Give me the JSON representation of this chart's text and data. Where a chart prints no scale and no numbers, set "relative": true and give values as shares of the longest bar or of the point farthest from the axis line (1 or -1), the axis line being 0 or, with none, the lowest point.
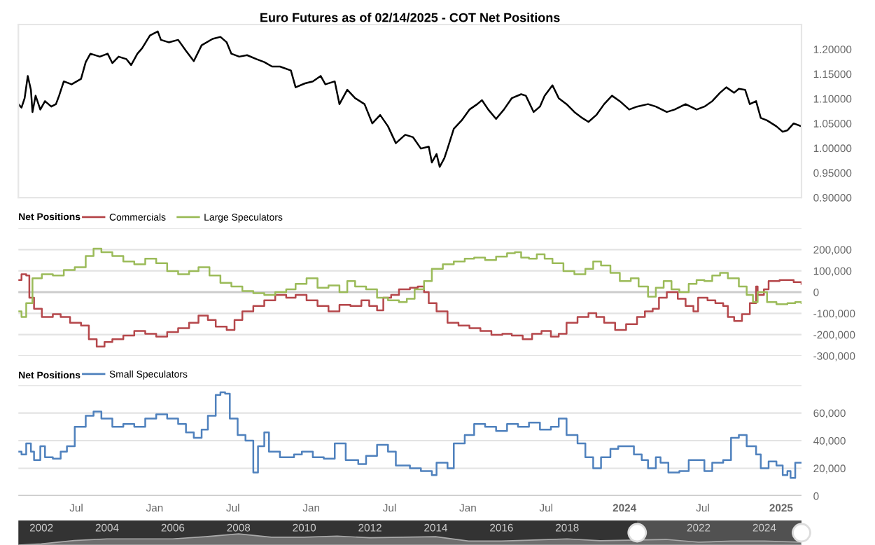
{
  "chart_data": [
    {
      "type": "line",
      "title": "Euro Futures as of 02/14/2025 - COT Net Positions",
      "xlim": [
        2020.13,
        2025.13
      ],
      "ylim": [
        0.9,
        1.25
      ],
      "yticks": [
        {
          "value": 0.9,
          "label": "0.90000"
        },
        {
          "value": 0.95,
          "label": "0.95000"
        },
        {
          "value": 1.0,
          "label": "1.00000"
        },
        {
          "value": 1.05,
          "label": "1.05000"
        },
        {
          "value": 1.1,
          "label": "1.10000"
        },
        {
          "value": 1.15,
          "label": "1.15000"
        },
        {
          "value": 1.2,
          "label": "1.20000"
        }
      ],
      "tick_labels": "y",
      "grid": false,
      "legend": false,
      "series": [
        {
          "color": "#000000",
          "x": [
            2020.13,
            2020.15,
            2020.17,
            2020.19,
            2020.21,
            2020.22,
            2020.24,
            2020.27,
            2020.3,
            2020.34,
            2020.37,
            2020.39,
            2020.42,
            2020.47,
            2020.53,
            2020.56,
            2020.59,
            2020.65,
            2020.7,
            2020.73,
            2020.77,
            2020.82,
            2020.85,
            2020.89,
            2020.92,
            2020.97,
            2021.02,
            2021.04,
            2021.09,
            2021.15,
            2021.2,
            2021.25,
            2021.3,
            2021.37,
            2021.42,
            2021.46,
            2021.49,
            2021.54,
            2021.59,
            2021.65,
            2021.7,
            2021.75,
            2021.8,
            2021.87,
            2021.9,
            2021.96,
            2022.01,
            2022.06,
            2022.09,
            2022.15,
            2022.18,
            2022.23,
            2022.28,
            2022.34,
            2022.39,
            2022.44,
            2022.49,
            2022.54,
            2022.6,
            2022.65,
            2022.7,
            2022.75,
            2022.77,
            2022.8,
            2022.82,
            2022.85,
            2022.87,
            2022.91,
            2022.96,
            2023.01,
            2023.06,
            2023.09,
            2023.13,
            2023.18,
            2023.23,
            2023.28,
            2023.34,
            2023.37,
            2023.42,
            2023.46,
            2023.49,
            2023.54,
            2023.58,
            2023.63,
            2023.68,
            2023.73,
            2023.77,
            2023.82,
            2023.87,
            2023.92,
            2023.97,
            2024.03,
            2024.08,
            2024.15,
            2024.2,
            2024.27,
            2024.32,
            2024.39,
            2024.46,
            2024.51,
            2024.56,
            2024.61,
            2024.65,
            2024.7,
            2024.73,
            2024.77,
            2024.8,
            2024.84,
            2024.87,
            2024.91,
            2024.94,
            2024.97,
            2025.01,
            2025.04,
            2025.08,
            2025.13
          ],
          "values": [
            1.089,
            1.082,
            1.101,
            1.146,
            1.118,
            1.073,
            1.106,
            1.078,
            1.095,
            1.084,
            1.089,
            1.106,
            1.135,
            1.129,
            1.14,
            1.174,
            1.191,
            1.185,
            1.191,
            1.172,
            1.185,
            1.18,
            1.168,
            1.191,
            1.202,
            1.228,
            1.236,
            1.219,
            1.214,
            1.219,
            1.197,
            1.176,
            1.208,
            1.221,
            1.225,
            1.214,
            1.191,
            1.185,
            1.188,
            1.18,
            1.174,
            1.165,
            1.165,
            1.157,
            1.123,
            1.131,
            1.135,
            1.146,
            1.129,
            1.135,
            1.089,
            1.118,
            1.101,
            1.089,
            1.05,
            1.067,
            1.044,
            1.01,
            1.027,
            1.022,
            0.999,
            1.003,
            0.971,
            0.988,
            0.962,
            0.98,
            0.999,
            1.039,
            1.056,
            1.078,
            1.089,
            1.097,
            1.078,
            1.059,
            1.078,
            1.101,
            1.109,
            1.106,
            1.073,
            1.084,
            1.106,
            1.127,
            1.101,
            1.089,
            1.073,
            1.061,
            1.053,
            1.067,
            1.089,
            1.106,
            1.095,
            1.078,
            1.084,
            1.089,
            1.084,
            1.073,
            1.078,
            1.089,
            1.078,
            1.084,
            1.095,
            1.112,
            1.123,
            1.112,
            1.12,
            1.118,
            1.089,
            1.095,
            1.061,
            1.056,
            1.05,
            1.044,
            1.033,
            1.036,
            1.05,
            1.044
          ]
        }
      ]
    },
    {
      "type": "step",
      "legend_title": "Net Positions",
      "legend": "top left",
      "grid": "y",
      "tick_labels": "y",
      "xlim": [
        2020.13,
        2025.13
      ],
      "ylim": [
        -300000,
        300000
      ],
      "yticks": [
        {
          "value": -300000,
          "label": "-300,000"
        },
        {
          "value": -200000,
          "label": "-200,000"
        },
        {
          "value": -100000,
          "label": "-100,000"
        },
        0,
        {
          "value": 100000,
          "label": "100,000"
        },
        {
          "value": 200000,
          "label": "200,000"
        },
        {
          "value": 300000,
          "label": null
        }
      ],
      "series": [
        {
          "name": "Commercials",
          "color": "#b5474b",
          "x": [
            2020.13,
            2020.15,
            2020.18,
            2020.2,
            2020.23,
            2020.28,
            2020.35,
            2020.4,
            2020.46,
            2020.53,
            2020.58,
            2020.63,
            2020.68,
            2020.73,
            2020.8,
            2020.87,
            2020.94,
            2021.01,
            2021.08,
            2021.15,
            2021.22,
            2021.28,
            2021.34,
            2021.39,
            2021.46,
            2021.51,
            2021.56,
            2021.63,
            2021.7,
            2021.77,
            2021.84,
            2021.9,
            2021.97,
            2022.04,
            2022.11,
            2022.18,
            2022.25,
            2022.32,
            2022.37,
            2022.42,
            2022.46,
            2022.51,
            2022.56,
            2022.63,
            2022.68,
            2022.72,
            2022.75,
            2022.8,
            2022.87,
            2022.94,
            2023.01,
            2023.08,
            2023.15,
            2023.22,
            2023.28,
            2023.35,
            2023.41,
            2023.47,
            2023.53,
            2023.58,
            2023.63,
            2023.7,
            2023.77,
            2023.82,
            2023.87,
            2023.94,
            2024.01,
            2024.08,
            2024.13,
            2024.18,
            2024.22,
            2024.27,
            2024.34,
            2024.39,
            2024.44,
            2024.47,
            2024.53,
            2024.58,
            2024.63,
            2024.66,
            2024.7,
            2024.75,
            2024.8,
            2024.84,
            2024.85,
            2024.89,
            2024.92,
            2024.99,
            2025.08,
            2025.13
          ],
          "values": [
            57000,
            84000,
            78000,
            -26000,
            -78000,
            -117000,
            -104000,
            -117000,
            -144000,
            -157000,
            -222000,
            -256000,
            -235000,
            -222000,
            -204000,
            -183000,
            -196000,
            -209000,
            -188000,
            -170000,
            -144000,
            -110000,
            -131000,
            -162000,
            -178000,
            -131000,
            -91000,
            -65000,
            -39000,
            -13000,
            -26000,
            -13000,
            -39000,
            -65000,
            -91000,
            -60000,
            -65000,
            -39000,
            -65000,
            -86000,
            -26000,
            -13000,
            13000,
            21000,
            26000,
            0,
            -52000,
            -91000,
            -144000,
            -157000,
            -170000,
            -183000,
            -201000,
            -196000,
            -204000,
            -222000,
            -196000,
            -183000,
            -209000,
            -196000,
            -144000,
            -117000,
            -99000,
            -117000,
            -144000,
            -178000,
            -151000,
            -117000,
            -91000,
            -78000,
            -26000,
            0,
            -31000,
            -65000,
            -91000,
            -26000,
            -39000,
            -52000,
            -65000,
            -117000,
            -136000,
            -104000,
            -52000,
            26000,
            -13000,
            13000,
            52000,
            57000,
            47000,
            39000
          ]
        },
        {
          "name": "Large Speculators",
          "color": "#9bbb59",
          "x": [
            2020.13,
            2020.15,
            2020.18,
            2020.22,
            2020.28,
            2020.35,
            2020.42,
            2020.49,
            2020.56,
            2020.61,
            2020.66,
            2020.73,
            2020.8,
            2020.87,
            2020.94,
            2021.01,
            2021.08,
            2021.15,
            2021.22,
            2021.28,
            2021.35,
            2021.42,
            2021.49,
            2021.56,
            2021.63,
            2021.7,
            2021.77,
            2021.84,
            2021.9,
            2021.97,
            2022.04,
            2022.11,
            2022.18,
            2022.23,
            2022.28,
            2022.35,
            2022.42,
            2022.49,
            2022.56,
            2022.61,
            2022.66,
            2022.72,
            2022.77,
            2022.84,
            2022.91,
            2022.98,
            2023.04,
            2023.11,
            2023.18,
            2023.25,
            2023.3,
            2023.34,
            2023.39,
            2023.44,
            2023.49,
            2023.54,
            2023.61,
            2023.68,
            2023.75,
            2023.8,
            2023.85,
            2023.91,
            2023.97,
            2024.04,
            2024.09,
            2024.15,
            2024.2,
            2024.25,
            2024.3,
            2024.35,
            2024.41,
            2024.46,
            2024.51,
            2024.56,
            2024.61,
            2024.66,
            2024.73,
            2024.78,
            2024.82,
            2024.85,
            2024.91,
            2024.97,
            2025.04,
            2025.09,
            2025.13
          ],
          "values": [
            -91000,
            -117000,
            -52000,
            65000,
            84000,
            78000,
            104000,
            117000,
            170000,
            204000,
            188000,
            170000,
            144000,
            131000,
            157000,
            136000,
            99000,
            84000,
            99000,
            117000,
            78000,
            44000,
            26000,
            5000,
            -5000,
            -13000,
            0,
            13000,
            39000,
            65000,
            21000,
            31000,
            0,
            52000,
            26000,
            13000,
            -26000,
            -39000,
            -47000,
            -31000,
            13000,
            52000,
            110000,
            131000,
            144000,
            157000,
            162000,
            151000,
            167000,
            183000,
            188000,
            162000,
            157000,
            178000,
            157000,
            136000,
            99000,
            84000,
            110000,
            144000,
            125000,
            91000,
            52000,
            65000,
            26000,
            -21000,
            21000,
            52000,
            13000,
            0,
            39000,
            57000,
            52000,
            78000,
            91000,
            65000,
            26000,
            -13000,
            -47000,
            0,
            -47000,
            -57000,
            -52000,
            -47000,
            -52000
          ]
        }
      ]
    },
    {
      "type": "step",
      "legend_title": "Net Positions",
      "legend": "top left",
      "grid": "y",
      "xlim": [
        2020.13,
        2025.13
      ],
      "ylim": [
        0,
        80000
      ],
      "xticks": [
        {
          "value": 2020.5,
          "label": "Jul"
        },
        {
          "value": 2021,
          "label": "Jan"
        },
        {
          "value": 2021.5,
          "label": "Jul"
        },
        {
          "value": 2022,
          "label": "Jan"
        },
        {
          "value": 2022.5,
          "label": "Jul"
        },
        {
          "value": 2023,
          "label": "Jan"
        },
        {
          "value": 2023.5,
          "label": "Jul"
        },
        2024,
        {
          "value": 2024.5,
          "label": "Jul"
        },
        2025
      ],
      "yticks": [
        0,
        {
          "value": 20000,
          "label": "20,000"
        },
        {
          "value": 40000,
          "label": "40,000"
        },
        {
          "value": 60000,
          "label": "60,000"
        },
        {
          "value": 80000,
          "label": null
        }
      ],
      "series": [
        {
          "name": "Small Speculators",
          "color": "#4f81bd",
          "x": [
            2020.13,
            2020.15,
            2020.18,
            2020.21,
            2020.23,
            2020.27,
            2020.3,
            2020.35,
            2020.4,
            2020.44,
            2020.49,
            2020.56,
            2020.61,
            2020.66,
            2020.73,
            2020.8,
            2020.87,
            2020.94,
            2021.01,
            2021.08,
            2021.15,
            2021.2,
            2021.25,
            2021.3,
            2021.34,
            2021.39,
            2021.42,
            2021.45,
            2021.48,
            2021.53,
            2021.58,
            2021.63,
            2021.66,
            2021.7,
            2021.73,
            2021.8,
            2021.89,
            2021.94,
            2022.01,
            2022.08,
            2022.15,
            2022.22,
            2022.3,
            2022.35,
            2022.42,
            2022.49,
            2022.54,
            2022.63,
            2022.7,
            2022.77,
            2022.8,
            2022.87,
            2022.91,
            2022.98,
            2023.04,
            2023.11,
            2023.18,
            2023.25,
            2023.32,
            2023.39,
            2023.46,
            2023.53,
            2023.58,
            2023.63,
            2023.7,
            2023.75,
            2023.8,
            2023.85,
            2023.91,
            2023.96,
            2024.01,
            2024.06,
            2024.11,
            2024.15,
            2024.2,
            2024.23,
            2024.28,
            2024.35,
            2024.41,
            2024.46,
            2024.51,
            2024.56,
            2024.63,
            2024.68,
            2024.73,
            2024.78,
            2024.84,
            2024.87,
            2024.92,
            2024.97,
            2025.01,
            2025.04,
            2025.06,
            2025.09,
            2025.13
          ],
          "values": [
            32000,
            30000,
            38000,
            32000,
            26000,
            36000,
            28000,
            27000,
            32000,
            36000,
            50000,
            58000,
            61000,
            56000,
            50000,
            52000,
            50000,
            56000,
            59000,
            56000,
            52000,
            46000,
            42000,
            48000,
            58000,
            73000,
            75000,
            74000,
            56000,
            44000,
            40000,
            17000,
            36000,
            46000,
            32000,
            28000,
            30000,
            32000,
            28000,
            27000,
            38000,
            26000,
            23000,
            29000,
            37000,
            32000,
            22000,
            20000,
            18000,
            15000,
            24000,
            20000,
            38000,
            44000,
            52000,
            50000,
            47000,
            52000,
            50000,
            53000,
            48000,
            50000,
            56000,
            44000,
            38000,
            28000,
            20000,
            28000,
            34000,
            36000,
            36000,
            30000,
            26000,
            20000,
            28000,
            24000,
            17000,
            18000,
            26000,
            26000,
            18000,
            24000,
            26000,
            42000,
            44000,
            36000,
            30000,
            20000,
            25000,
            22000,
            15000,
            18000,
            13000,
            24000,
            24000
          ]
        }
      ]
    },
    {
      "type": "area",
      "relative": true,
      "tick_labels": "x",
      "xlim": [
        2001.3,
        2025.13
      ],
      "xticks": [
        2002,
        2004,
        2006,
        2008,
        2010,
        2012,
        2014,
        2016,
        2018,
        2022,
        2024
      ],
      "bands": [
        {
          "axis": "x",
          "from": 2020.13,
          "to": 2025.13,
          "color": "#8a8a8a"
        }
      ],
      "series": [
        {
          "color": "#6e6e6e",
          "x": [
            2001.3,
            2002,
            2003,
            2004,
            2005,
            2006,
            2007,
            2008,
            2009,
            2010,
            2011,
            2012,
            2013,
            2014,
            2015,
            2016,
            2017,
            2018,
            2019,
            2021,
            2022,
            2023,
            2024,
            2025.13
          ],
          "values": [
            0,
            0.1,
            0.4,
            0.55,
            0.55,
            0.55,
            0.75,
            1,
            0.7,
            0.7,
            0.8,
            0.65,
            0.7,
            0.75,
            0.35,
            0.35,
            0.45,
            0.55,
            0.38,
            0.5,
            0.25,
            0.35,
            0.35,
            0.25
          ]
        }
      ]
    }
  ]
}
